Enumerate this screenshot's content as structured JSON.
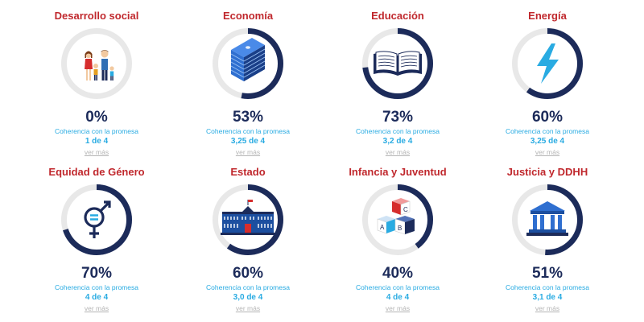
{
  "colors": {
    "accent_red": "#c0282d",
    "navy": "#1c2b5a",
    "ring_track": "#e8e8e8",
    "cyan": "#29abe2",
    "link_grey": "#b5b5b5"
  },
  "cards": [
    {
      "title": "Desarrollo social",
      "percent": "0%",
      "progress_fraction": 0.0,
      "label": "Coherencia con la promesa",
      "score": "1 de 4",
      "link": "ver más",
      "icon": "family-icon"
    },
    {
      "title": "Economía",
      "percent": "53%",
      "progress_fraction": 0.53,
      "label": "Coherencia con la promesa",
      "score": "3,25 de 4",
      "link": "ver más",
      "icon": "money-stack-icon"
    },
    {
      "title": "Educación",
      "percent": "73%",
      "progress_fraction": 0.73,
      "label": "Coherencia con la promesa",
      "score": "3,2 de 4",
      "link": "ver más",
      "icon": "open-book-icon"
    },
    {
      "title": "Energía",
      "percent": "60%",
      "progress_fraction": 0.6,
      "label": "Coherencia con la promesa",
      "score": "3,25 de 4",
      "link": "ver más",
      "icon": "lightning-icon"
    },
    {
      "title": "Equidad de Género",
      "percent": "70%",
      "progress_fraction": 0.7,
      "label": "Coherencia con la promesa",
      "score": "4 de 4",
      "link": "ver más",
      "icon": "gender-equality-icon"
    },
    {
      "title": "Estado",
      "percent": "60%",
      "progress_fraction": 0.6,
      "label": "Coherencia con la promesa",
      "score": "3,0 de 4",
      "link": "ver más",
      "icon": "government-palace-icon"
    },
    {
      "title": "Infancia y Juventud",
      "percent": "40%",
      "progress_fraction": 0.4,
      "label": "Coherencia con la promesa",
      "score": "4 de 4",
      "link": "ver más",
      "icon": "abc-blocks-icon"
    },
    {
      "title": "Justicia y DDHH",
      "percent": "51%",
      "progress_fraction": 0.51,
      "label": "Coherencia con la promesa",
      "score": "3,1 de 4",
      "link": "ver más",
      "icon": "courthouse-icon"
    }
  ]
}
